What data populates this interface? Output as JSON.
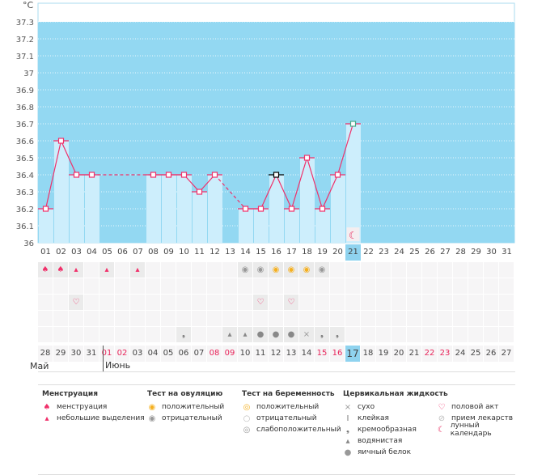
{
  "chart_data": {
    "type": "line",
    "unit": "°C",
    "y_ticks": [
      "37.3",
      "37.2",
      "37.1",
      "37",
      "36.9",
      "36.8",
      "36.7",
      "36.6",
      "36.5",
      "36.4",
      "36.3",
      "36.2",
      "36.1",
      "36"
    ],
    "ylim": [
      36,
      37.4
    ],
    "cycle_days": [
      "01",
      "02",
      "03",
      "04",
      "05",
      "06",
      "07",
      "08",
      "09",
      "10",
      "11",
      "12",
      "13",
      "14",
      "15",
      "16",
      "17",
      "18",
      "19",
      "20",
      "21",
      "22",
      "23",
      "24",
      "25",
      "26",
      "27",
      "28",
      "29",
      "30",
      "31"
    ],
    "temperatures": [
      36.2,
      36.6,
      36.4,
      36.4,
      null,
      null,
      null,
      36.4,
      36.4,
      36.4,
      36.3,
      36.4,
      null,
      36.2,
      36.2,
      36.4,
      36.2,
      36.5,
      36.2,
      36.4,
      36.7,
      null,
      null,
      null,
      null,
      null,
      null,
      null,
      null,
      null,
      null
    ],
    "highlight_day_index": 20,
    "dates": [
      "28",
      "29",
      "30",
      "31",
      "01",
      "02",
      "03",
      "04",
      "05",
      "06",
      "07",
      "08",
      "09",
      "10",
      "11",
      "12",
      "13",
      "14",
      "15",
      "16",
      "17",
      "18",
      "19",
      "20",
      "21",
      "22",
      "23",
      "24",
      "25",
      "26",
      "27"
    ],
    "weekend_date_indices": [
      4,
      5,
      11,
      12,
      18,
      19,
      25,
      26
    ],
    "months": [
      {
        "label": "Май"
      },
      {
        "label": "Июнь"
      }
    ],
    "markers": {
      "menstruation": {
        "0": "menstruation",
        "1": "menstruation",
        "2": "spotting",
        "4": "spotting",
        "6": "spotting",
        "13": "ov-neg",
        "14": "ov-neg",
        "15": "ov-pos",
        "16": "ov-pos",
        "17": "ov-pos",
        "18": "ov-neg"
      },
      "intercourse": [
        2,
        14,
        16
      ],
      "cervical": {
        "9": "creamy",
        "12": "watery",
        "13": "watery",
        "14": "egg-white",
        "15": "egg-white",
        "16": "egg-white",
        "17": "dry",
        "18": "creamy",
        "19": "creamy"
      },
      "moon_day_index": 20
    }
  },
  "legend": {
    "groups": [
      {
        "title": "Менструация",
        "items": [
          {
            "icon": "menstruation-icon",
            "label": "менструация"
          },
          {
            "icon": "spotting-icon",
            "label": "небольшие выделения"
          }
        ]
      },
      {
        "title": "Тест на овуляцию",
        "items": [
          {
            "icon": "ovulation-positive-icon",
            "label": "положительный"
          },
          {
            "icon": "ovulation-negative-icon",
            "label": "отрицательный"
          }
        ]
      },
      {
        "title": "Тест на беременность",
        "items": [
          {
            "icon": "pregnancy-positive-icon",
            "label": "положительный"
          },
          {
            "icon": "pregnancy-negative-icon",
            "label": "отрицательный"
          },
          {
            "icon": "pregnancy-weak-icon",
            "label": "слабоположительный"
          }
        ]
      },
      {
        "title": "Цервикальная жидкость",
        "items": [
          {
            "icon": "dry-icon",
            "label": "сухо"
          },
          {
            "icon": "sticky-icon",
            "label": "клейкая"
          },
          {
            "icon": "creamy-icon",
            "label": "кремообразная"
          },
          {
            "icon": "watery-icon",
            "label": "водянистая"
          },
          {
            "icon": "egg-white-icon",
            "label": "яичный белок"
          }
        ]
      },
      {
        "title": "",
        "items": [
          {
            "icon": "heart-icon",
            "label": "половой акт"
          },
          {
            "icon": "pill-icon",
            "label": "прием лекарств"
          },
          {
            "icon": "moon-icon",
            "label": "лунный календарь"
          }
        ]
      }
    ]
  },
  "colors": {
    "plot_bg": "#93d8f2",
    "bar": "#cdeefc",
    "line": "#f0306a",
    "weekend": "#e8245a"
  }
}
